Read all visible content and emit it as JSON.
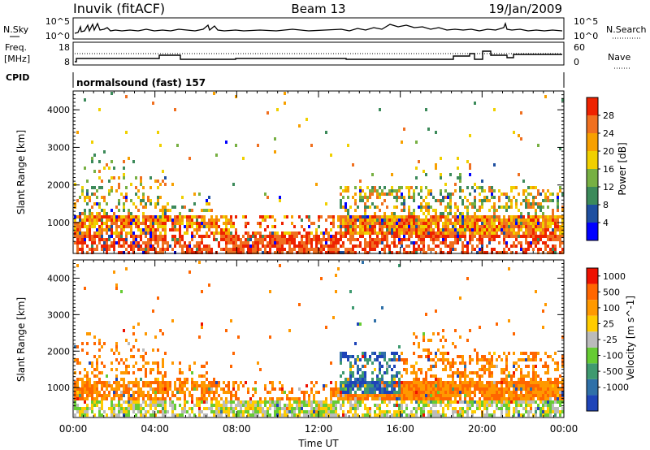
{
  "header": {
    "station": "Inuvik (fitACF)",
    "beam": "Beam 13",
    "date": "19/Jan/2009"
  },
  "panels": {
    "nsky": {
      "label": "N.Sky",
      "ytick_top": "10^5",
      "ytick_bottom": "10^0",
      "right_label": "N.Search",
      "right_tick_top": "10^5",
      "right_tick_bottom": "10^0"
    },
    "freq": {
      "label_line1": "Freq.",
      "label_line2": "[MHz]",
      "ytick_top": "18",
      "ytick_bottom": "8",
      "right_label": "Nave",
      "right_tick_top": "60",
      "right_tick_bottom": "0"
    },
    "cpid": {
      "label": "CPID",
      "text": "normalsound (fast) 157"
    }
  },
  "chart_data": [
    {
      "type": "heatmap",
      "quantity": "Power",
      "ylabel": "Slant Range [km]",
      "ylim": [
        180,
        4500
      ],
      "yticks": [
        "1000",
        "2000",
        "3000",
        "4000"
      ],
      "xlim": [
        "00:00",
        "24:00"
      ],
      "colorbar": {
        "label": "Power [dB]",
        "ticks": [
          "4",
          "8",
          "12",
          "16",
          "20",
          "24",
          "28"
        ],
        "colors": [
          "#0000ff",
          "#1e4fa0",
          "#3c8a5a",
          "#77b043",
          "#f0d000",
          "#f7a000",
          "#f07020",
          "#ee2200"
        ]
      }
    },
    {
      "type": "heatmap",
      "quantity": "Velocity",
      "ylabel": "Slant Range [km]",
      "ylim": [
        180,
        4500
      ],
      "yticks": [
        "1000",
        "2000",
        "3000",
        "4000"
      ],
      "xlim": [
        "00:00",
        "24:00"
      ],
      "colorbar": {
        "label": "Velocity [m s^-1]",
        "ticks": [
          "1000",
          "500",
          "100",
          "25",
          "-25",
          "-100",
          "-500",
          "-1000"
        ],
        "colors": [
          "#1e44b8",
          "#2f70a8",
          "#3f9a70",
          "#66cc33",
          "#bbbbbb",
          "#ffcc00",
          "#ff9900",
          "#ff6600",
          "#ee1100"
        ]
      }
    }
  ],
  "xaxis": {
    "ticks": [
      "00:00",
      "04:00",
      "08:00",
      "12:00",
      "16:00",
      "20:00",
      "00:00"
    ],
    "label": "Time UT"
  }
}
